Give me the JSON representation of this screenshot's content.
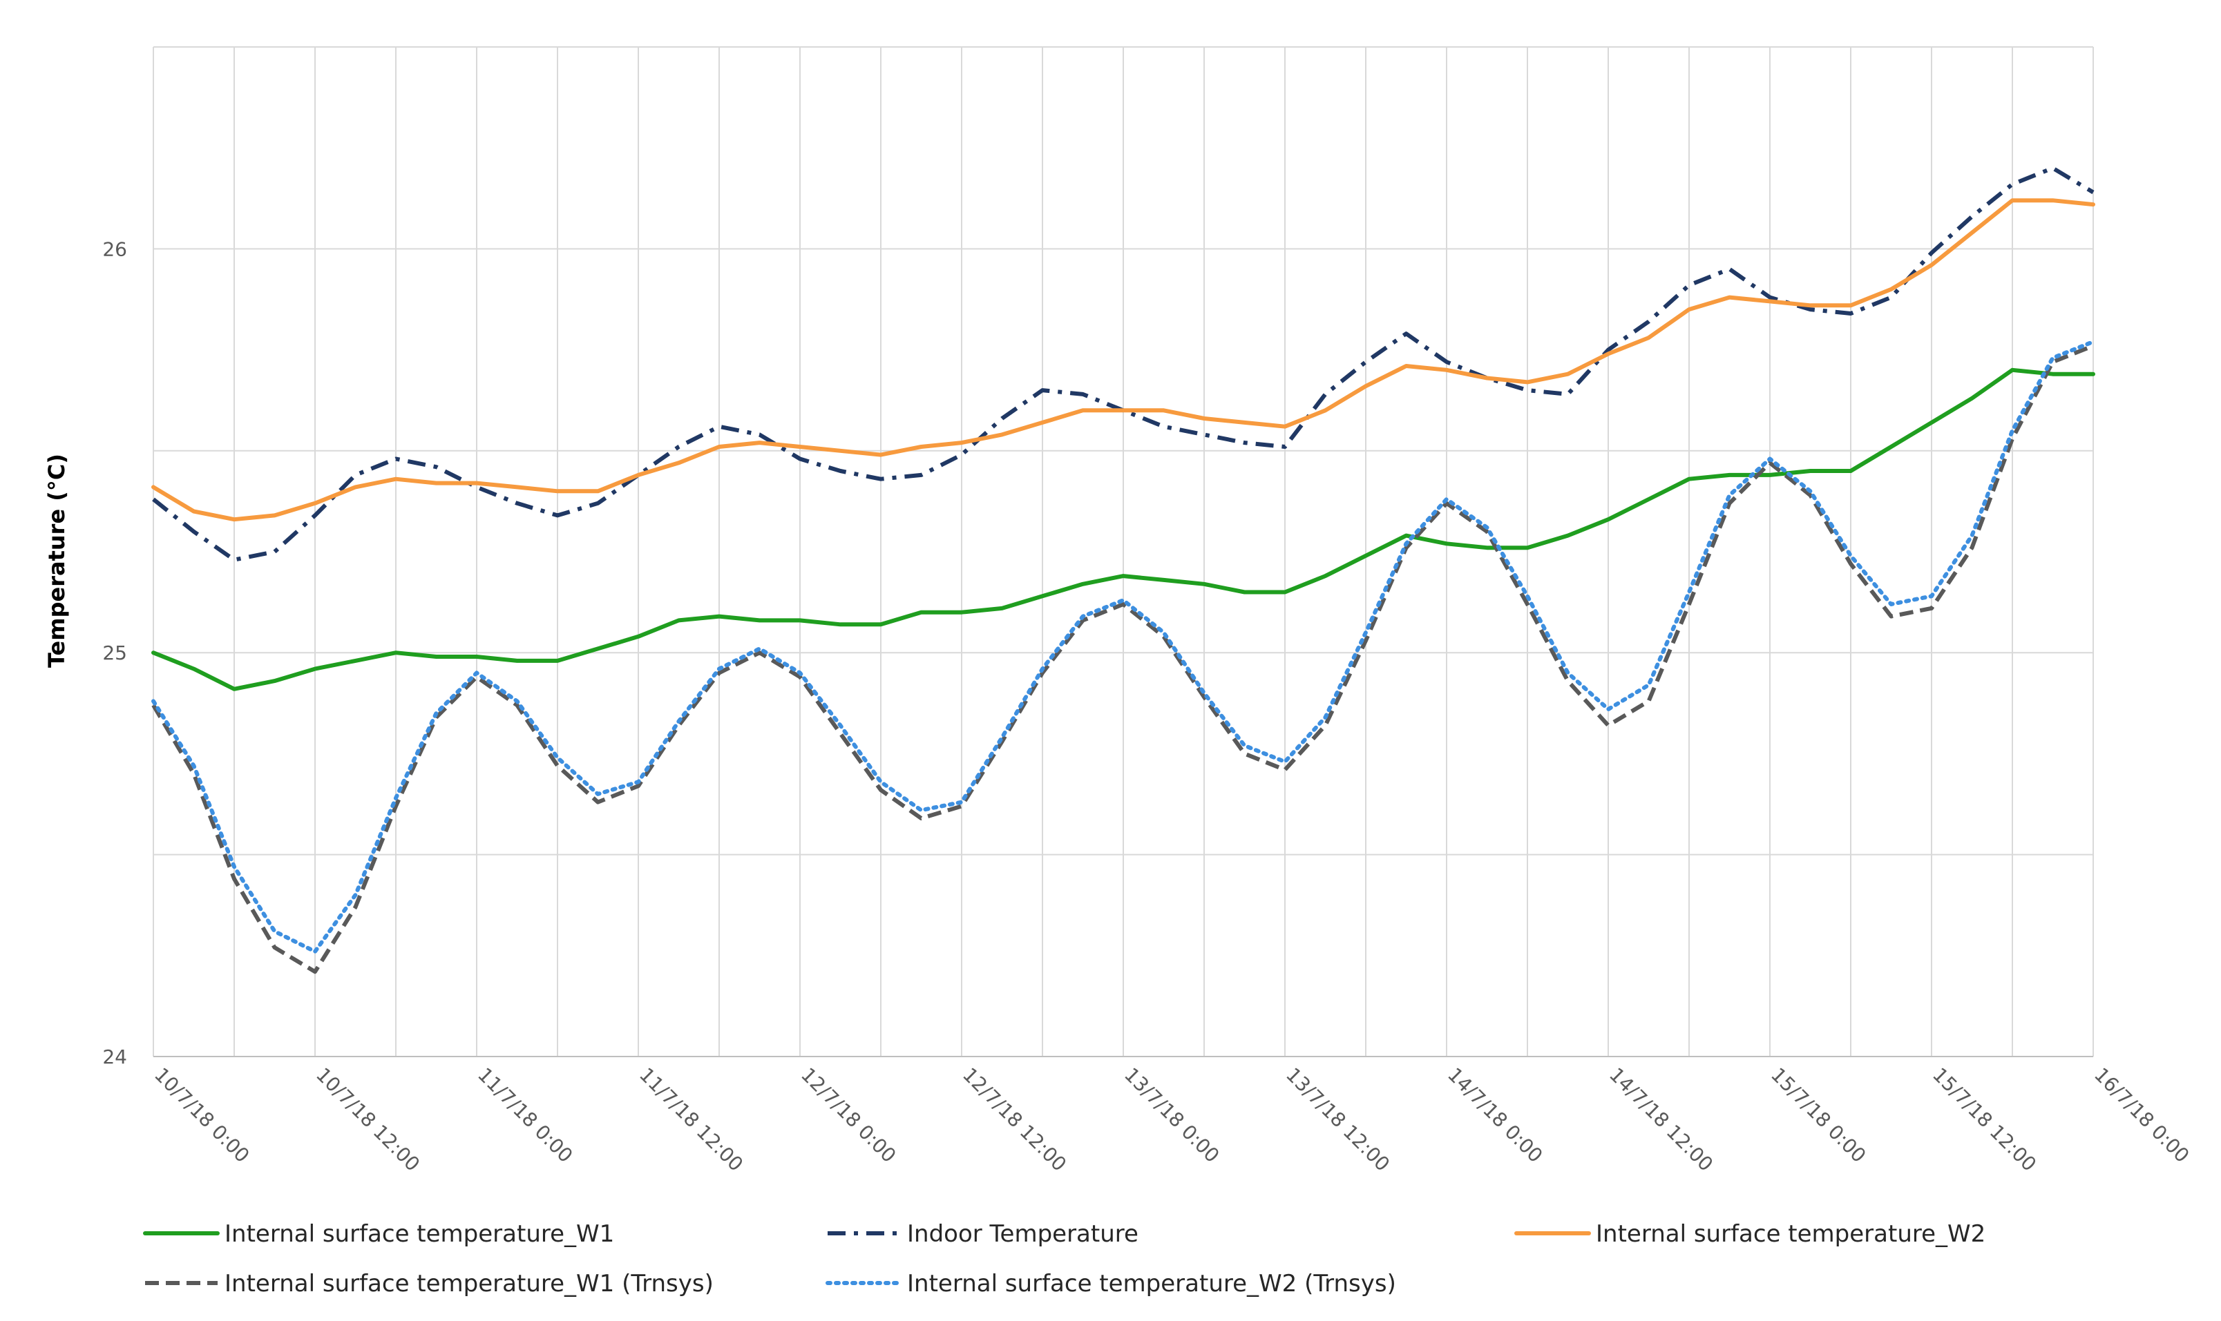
{
  "chart_data": {
    "type": "line",
    "title": "",
    "xlabel": "",
    "ylabel": "Temperature (°C)",
    "ylim": [
      24,
      26.5
    ],
    "xlim": [
      0,
      144
    ],
    "grid": true,
    "legend_position": "bottom",
    "y_ticks": [
      {
        "value": 24,
        "label": "24"
      },
      {
        "value": 25,
        "label": "25"
      },
      {
        "value": 26,
        "label": "26"
      }
    ],
    "x_ticks": [
      {
        "value": 0,
        "label": "10/7/18 0:00"
      },
      {
        "value": 12,
        "label": "10/7/18 12:00"
      },
      {
        "value": 24,
        "label": "11/7/18 0:00"
      },
      {
        "value": 36,
        "label": "11/7/18 12:00"
      },
      {
        "value": 48,
        "label": "12/7/18 0:00"
      },
      {
        "value": 60,
        "label": "12/7/18 12:00"
      },
      {
        "value": 72,
        "label": "13/7/18 0:00"
      },
      {
        "value": 84,
        "label": "13/7/18 12:00"
      },
      {
        "value": 96,
        "label": "14/7/18 0:00"
      },
      {
        "value": 108,
        "label": "14/7/18 12:00"
      },
      {
        "value": 120,
        "label": "15/7/18 0:00"
      },
      {
        "value": 132,
        "label": "15/7/18 12:00"
      },
      {
        "value": 144,
        "label": "16/7/18 0:00"
      }
    ],
    "series": [
      {
        "name": "Internal surface temperature_W1",
        "color": "#1f9e1f",
        "style": "solid",
        "points": [
          [
            0,
            25.0
          ],
          [
            3,
            24.96
          ],
          [
            6,
            24.91
          ],
          [
            9,
            24.93
          ],
          [
            12,
            24.96
          ],
          [
            15,
            24.98
          ],
          [
            18,
            25.0
          ],
          [
            21,
            24.99
          ],
          [
            24,
            24.99
          ],
          [
            27,
            24.98
          ],
          [
            30,
            24.98
          ],
          [
            33,
            25.01
          ],
          [
            36,
            25.04
          ],
          [
            39,
            25.08
          ],
          [
            42,
            25.09
          ],
          [
            45,
            25.08
          ],
          [
            48,
            25.08
          ],
          [
            51,
            25.07
          ],
          [
            54,
            25.07
          ],
          [
            57,
            25.1
          ],
          [
            60,
            25.1
          ],
          [
            63,
            25.11
          ],
          [
            66,
            25.14
          ],
          [
            69,
            25.17
          ],
          [
            72,
            25.19
          ],
          [
            75,
            25.18
          ],
          [
            78,
            25.17
          ],
          [
            81,
            25.15
          ],
          [
            84,
            25.15
          ],
          [
            87,
            25.19
          ],
          [
            90,
            25.24
          ],
          [
            93,
            25.29
          ],
          [
            96,
            25.27
          ],
          [
            99,
            25.26
          ],
          [
            102,
            25.26
          ],
          [
            105,
            25.29
          ],
          [
            108,
            25.33
          ],
          [
            111,
            25.38
          ],
          [
            114,
            25.43
          ],
          [
            117,
            25.44
          ],
          [
            120,
            25.44
          ],
          [
            123,
            25.45
          ],
          [
            126,
            25.45
          ],
          [
            129,
            25.51
          ],
          [
            132,
            25.57
          ],
          [
            135,
            25.63
          ],
          [
            138,
            25.7
          ],
          [
            141,
            25.69
          ],
          [
            144,
            25.69
          ]
        ]
      },
      {
        "name": "Indoor Temperature",
        "color": "#203864",
        "style": "dashdot",
        "points": [
          [
            0,
            25.38
          ],
          [
            3,
            25.3
          ],
          [
            6,
            25.23
          ],
          [
            9,
            25.25
          ],
          [
            12,
            25.34
          ],
          [
            15,
            25.44
          ],
          [
            18,
            25.48
          ],
          [
            21,
            25.46
          ],
          [
            24,
            25.41
          ],
          [
            27,
            25.37
          ],
          [
            30,
            25.34
          ],
          [
            33,
            25.37
          ],
          [
            36,
            25.44
          ],
          [
            39,
            25.51
          ],
          [
            42,
            25.56
          ],
          [
            45,
            25.54
          ],
          [
            48,
            25.48
          ],
          [
            51,
            25.45
          ],
          [
            54,
            25.43
          ],
          [
            57,
            25.44
          ],
          [
            60,
            25.49
          ],
          [
            63,
            25.58
          ],
          [
            66,
            25.65
          ],
          [
            69,
            25.64
          ],
          [
            72,
            25.6
          ],
          [
            75,
            25.56
          ],
          [
            78,
            25.54
          ],
          [
            81,
            25.52
          ],
          [
            84,
            25.51
          ],
          [
            87,
            25.64
          ],
          [
            90,
            25.72
          ],
          [
            93,
            25.79
          ],
          [
            96,
            25.72
          ],
          [
            99,
            25.68
          ],
          [
            102,
            25.65
          ],
          [
            105,
            25.64
          ],
          [
            108,
            25.75
          ],
          [
            111,
            25.82
          ],
          [
            114,
            25.91
          ],
          [
            117,
            25.95
          ],
          [
            120,
            25.88
          ],
          [
            123,
            25.85
          ],
          [
            126,
            25.84
          ],
          [
            129,
            25.88
          ],
          [
            132,
            25.99
          ],
          [
            135,
            26.08
          ],
          [
            138,
            26.16
          ],
          [
            141,
            26.2
          ],
          [
            144,
            26.14
          ]
        ]
      },
      {
        "name": "Internal surface temperature_W2",
        "color": "#f79a3e",
        "style": "solid",
        "points": [
          [
            0,
            25.41
          ],
          [
            3,
            25.35
          ],
          [
            6,
            25.33
          ],
          [
            9,
            25.34
          ],
          [
            12,
            25.37
          ],
          [
            15,
            25.41
          ],
          [
            18,
            25.43
          ],
          [
            21,
            25.42
          ],
          [
            24,
            25.42
          ],
          [
            27,
            25.41
          ],
          [
            30,
            25.4
          ],
          [
            33,
            25.4
          ],
          [
            36,
            25.44
          ],
          [
            39,
            25.47
          ],
          [
            42,
            25.51
          ],
          [
            45,
            25.52
          ],
          [
            48,
            25.51
          ],
          [
            51,
            25.5
          ],
          [
            54,
            25.49
          ],
          [
            57,
            25.51
          ],
          [
            60,
            25.52
          ],
          [
            63,
            25.54
          ],
          [
            66,
            25.57
          ],
          [
            69,
            25.6
          ],
          [
            72,
            25.6
          ],
          [
            75,
            25.6
          ],
          [
            78,
            25.58
          ],
          [
            81,
            25.57
          ],
          [
            84,
            25.56
          ],
          [
            87,
            25.6
          ],
          [
            90,
            25.66
          ],
          [
            93,
            25.71
          ],
          [
            96,
            25.7
          ],
          [
            99,
            25.68
          ],
          [
            102,
            25.67
          ],
          [
            105,
            25.69
          ],
          [
            108,
            25.74
          ],
          [
            111,
            25.78
          ],
          [
            114,
            25.85
          ],
          [
            117,
            25.88
          ],
          [
            120,
            25.87
          ],
          [
            123,
            25.86
          ],
          [
            126,
            25.86
          ],
          [
            129,
            25.9
          ],
          [
            132,
            25.96
          ],
          [
            135,
            26.04
          ],
          [
            138,
            26.12
          ],
          [
            141,
            26.12
          ],
          [
            144,
            26.11
          ]
        ]
      },
      {
        "name": "Internal surface temperature_W1 (Trnsys)",
        "color": "#595959",
        "style": "dashed",
        "points": [
          [
            0,
            24.87
          ],
          [
            3,
            24.7
          ],
          [
            6,
            24.44
          ],
          [
            9,
            24.27
          ],
          [
            12,
            24.21
          ],
          [
            15,
            24.37
          ],
          [
            18,
            24.62
          ],
          [
            21,
            24.84
          ],
          [
            24,
            24.94
          ],
          [
            27,
            24.87
          ],
          [
            30,
            24.72
          ],
          [
            33,
            24.63
          ],
          [
            36,
            24.67
          ],
          [
            39,
            24.82
          ],
          [
            42,
            24.95
          ],
          [
            45,
            25.0
          ],
          [
            48,
            24.94
          ],
          [
            51,
            24.8
          ],
          [
            54,
            24.66
          ],
          [
            57,
            24.59
          ],
          [
            60,
            24.62
          ],
          [
            63,
            24.78
          ],
          [
            66,
            24.95
          ],
          [
            69,
            25.08
          ],
          [
            72,
            25.12
          ],
          [
            75,
            25.04
          ],
          [
            78,
            24.89
          ],
          [
            81,
            24.75
          ],
          [
            84,
            24.71
          ],
          [
            87,
            24.82
          ],
          [
            90,
            25.03
          ],
          [
            93,
            25.26
          ],
          [
            96,
            25.37
          ],
          [
            99,
            25.3
          ],
          [
            102,
            25.12
          ],
          [
            105,
            24.93
          ],
          [
            108,
            24.82
          ],
          [
            111,
            24.88
          ],
          [
            114,
            25.12
          ],
          [
            117,
            25.37
          ],
          [
            120,
            25.47
          ],
          [
            123,
            25.39
          ],
          [
            126,
            25.22
          ],
          [
            129,
            25.09
          ],
          [
            132,
            25.11
          ],
          [
            135,
            25.26
          ],
          [
            138,
            25.53
          ],
          [
            141,
            25.72
          ],
          [
            144,
            25.76
          ]
        ]
      },
      {
        "name": "Internal surface temperature_W2 (Trnsys)",
        "color": "#3d8fe0",
        "style": "dotted",
        "points": [
          [
            0,
            24.88
          ],
          [
            3,
            24.72
          ],
          [
            6,
            24.47
          ],
          [
            9,
            24.31
          ],
          [
            12,
            24.26
          ],
          [
            15,
            24.4
          ],
          [
            18,
            24.64
          ],
          [
            21,
            24.85
          ],
          [
            24,
            24.95
          ],
          [
            27,
            24.88
          ],
          [
            30,
            24.74
          ],
          [
            33,
            24.65
          ],
          [
            36,
            24.68
          ],
          [
            39,
            24.83
          ],
          [
            42,
            24.96
          ],
          [
            45,
            25.01
          ],
          [
            48,
            24.95
          ],
          [
            51,
            24.82
          ],
          [
            54,
            24.68
          ],
          [
            57,
            24.61
          ],
          [
            60,
            24.63
          ],
          [
            63,
            24.79
          ],
          [
            66,
            24.96
          ],
          [
            69,
            25.09
          ],
          [
            72,
            25.13
          ],
          [
            75,
            25.05
          ],
          [
            78,
            24.9
          ],
          [
            81,
            24.77
          ],
          [
            84,
            24.73
          ],
          [
            87,
            24.84
          ],
          [
            90,
            25.05
          ],
          [
            93,
            25.27
          ],
          [
            96,
            25.38
          ],
          [
            99,
            25.31
          ],
          [
            102,
            25.14
          ],
          [
            105,
            24.95
          ],
          [
            108,
            24.86
          ],
          [
            111,
            24.92
          ],
          [
            114,
            25.15
          ],
          [
            117,
            25.39
          ],
          [
            120,
            25.48
          ],
          [
            123,
            25.4
          ],
          [
            126,
            25.24
          ],
          [
            129,
            25.12
          ],
          [
            132,
            25.14
          ],
          [
            135,
            25.29
          ],
          [
            138,
            25.55
          ],
          [
            141,
            25.73
          ],
          [
            144,
            25.77
          ]
        ]
      }
    ]
  }
}
